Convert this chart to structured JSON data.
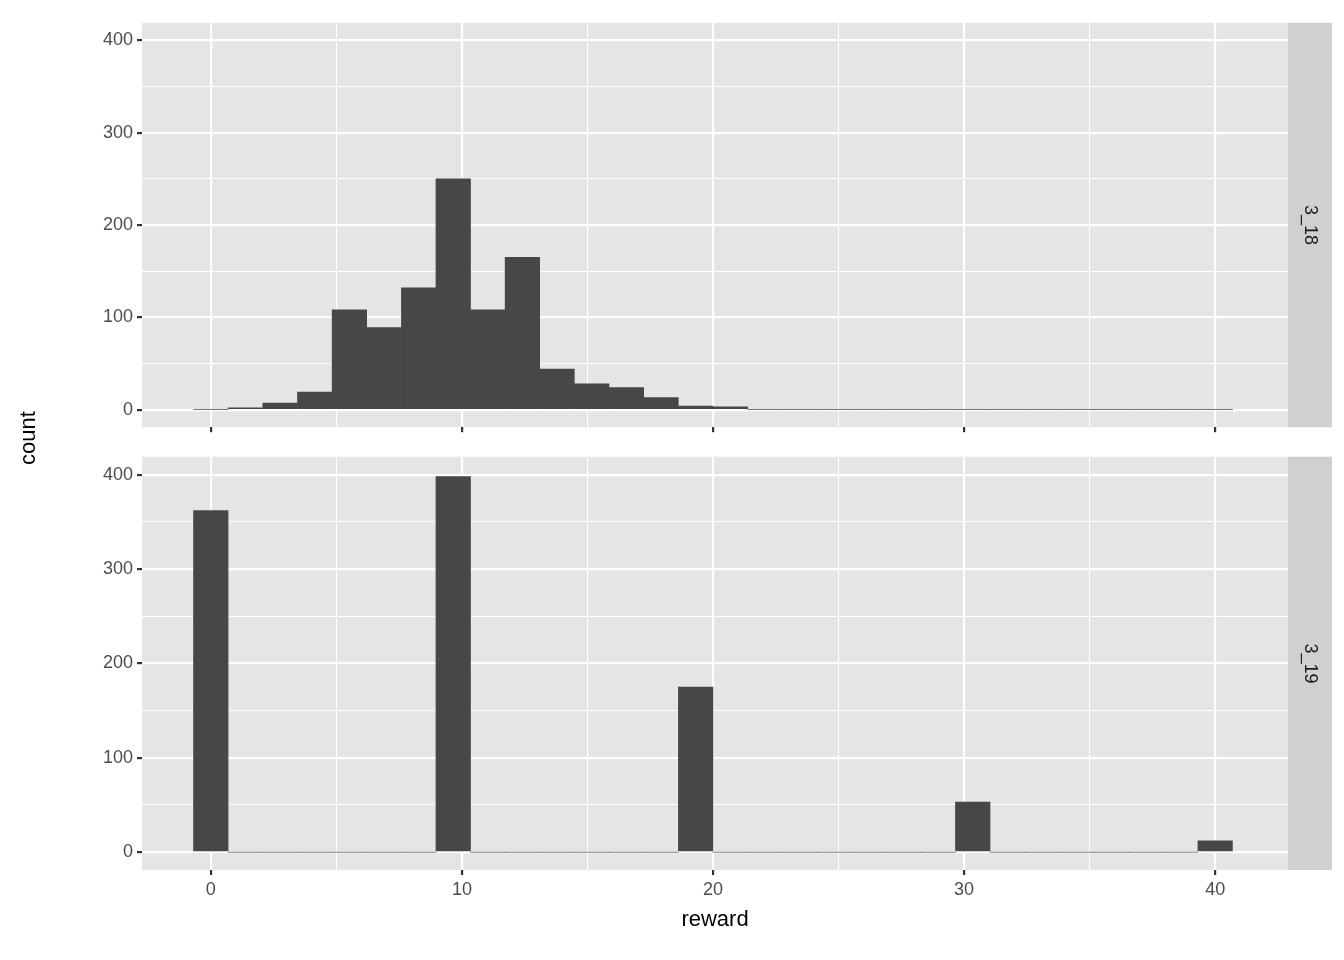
{
  "chart_data": [
    {
      "type": "histogram",
      "annotations": [
        "3_18"
      ],
      "ylabel": "count",
      "bins": [
        -0.69,
        0.69,
        2.07,
        3.45,
        4.83,
        6.21,
        7.59,
        8.97,
        10.34,
        11.72,
        13.1,
        14.48,
        15.86,
        17.24,
        18.62,
        20.0,
        21.38,
        22.76,
        24.14,
        25.52,
        26.9,
        28.28,
        29.66,
        31.03,
        32.41,
        33.79,
        35.17,
        36.55,
        37.93,
        39.31,
        40.69
      ],
      "values": [
        0,
        2,
        7,
        19,
        108,
        89,
        132,
        250,
        108,
        165,
        44,
        28,
        24,
        13,
        4,
        3,
        0,
        0,
        0,
        0,
        0,
        0,
        0,
        0,
        0,
        0,
        0,
        0,
        0,
        0
      ],
      "color": "#474747",
      "xlim": [
        -2.74,
        42.9
      ],
      "ylim": [
        -19,
        419
      ],
      "xticks": [
        0,
        {
          "value": 5,
          "label": null
        },
        10,
        {
          "value": 15,
          "label": null
        },
        20,
        {
          "value": 25,
          "label": null
        },
        30,
        {
          "value": 35,
          "label": null
        },
        40
      ],
      "yticks": [
        0,
        {
          "value": 50,
          "label": null
        },
        100,
        {
          "value": 150,
          "label": null
        },
        200,
        {
          "value": 250,
          "label": null
        },
        300,
        {
          "value": 350,
          "label": null
        },
        400
      ],
      "grid": true,
      "tick_labels": "y"
    },
    {
      "type": "histogram",
      "annotations": [
        "3_19"
      ],
      "xlabel": "reward",
      "bins": [
        -0.69,
        0.69,
        2.07,
        3.45,
        4.83,
        6.21,
        7.59,
        8.97,
        10.34,
        11.72,
        13.1,
        14.48,
        15.86,
        17.24,
        18.62,
        20.0,
        21.38,
        22.76,
        24.14,
        25.52,
        26.9,
        28.28,
        29.66,
        31.03,
        32.41,
        33.79,
        35.17,
        36.55,
        37.93,
        39.31,
        40.69
      ],
      "values": [
        362,
        0,
        0,
        0,
        0,
        0,
        0,
        398,
        0,
        0,
        0,
        0,
        0,
        0,
        175,
        0,
        0,
        0,
        0,
        0,
        0,
        0,
        53,
        0,
        0,
        0,
        0,
        0,
        0,
        12
      ],
      "color": "#474747",
      "xlim": [
        -2.74,
        42.9
      ],
      "ylim": [
        -19,
        419
      ],
      "xticks": [
        0,
        {
          "value": 5,
          "label": null
        },
        10,
        {
          "value": 15,
          "label": null
        },
        20,
        {
          "value": 25,
          "label": null
        },
        30,
        {
          "value": 35,
          "label": null
        },
        40
      ],
      "yticks": [
        0,
        {
          "value": 50,
          "label": null
        },
        100,
        {
          "value": 150,
          "label": null
        },
        200,
        {
          "value": 250,
          "label": null
        },
        300,
        {
          "value": 350,
          "label": null
        },
        400
      ],
      "grid": true
    }
  ]
}
